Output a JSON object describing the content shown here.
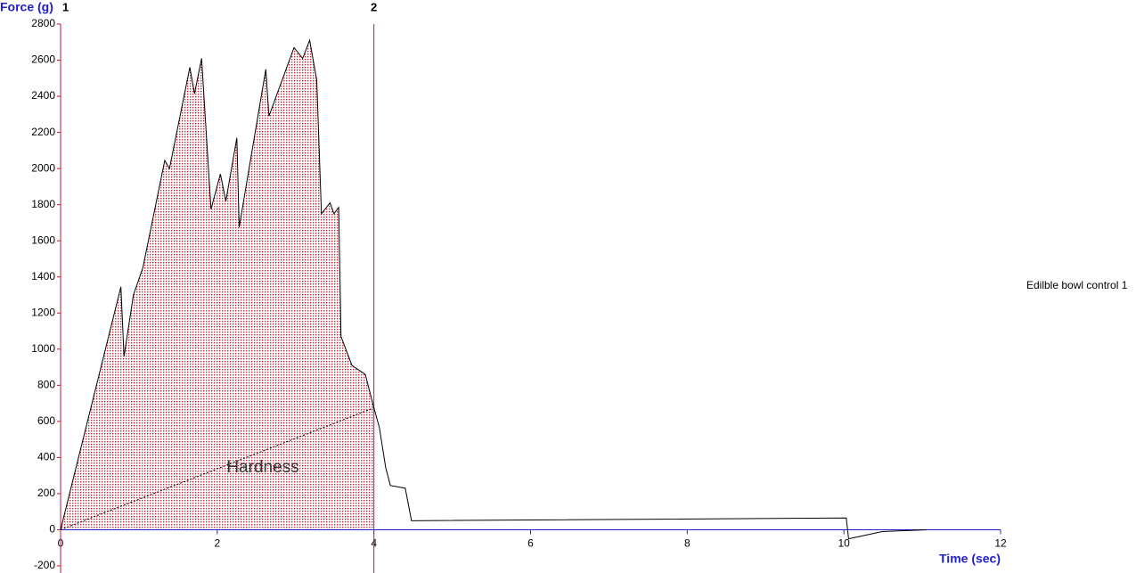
{
  "chart_data": {
    "type": "line",
    "y_label": "Force (g)",
    "x_label": "Time (sec)",
    "xlim": [
      0,
      12
    ],
    "xticks": [
      0,
      2,
      4,
      6,
      8,
      10,
      12
    ],
    "ylim": [
      -200,
      2800
    ],
    "yticks": [
      -200,
      0,
      200,
      400,
      600,
      800,
      1000,
      1200,
      1400,
      1600,
      1800,
      2000,
      2200,
      2400,
      2600,
      2800
    ],
    "markers": [
      {
        "label": "1",
        "x": 0
      },
      {
        "label": "2",
        "x": 4
      }
    ],
    "marker_color": "#d0103a",
    "annotation": "Hardness",
    "series": [
      {
        "name": "Edilble bowl control 1",
        "color": "#000000",
        "x": [
          0,
          0.77,
          0.81,
          0.93,
          1.05,
          1.33,
          1.39,
          1.65,
          1.71,
          1.8,
          1.92,
          2.04,
          2.11,
          2.25,
          2.28,
          2.62,
          2.66,
          2.98,
          3.09,
          3.18,
          3.27,
          3.33,
          3.44,
          3.49,
          3.55,
          3.58,
          3.72,
          3.89,
          4.0,
          4.07,
          4.15,
          4.21,
          4.4,
          4.48,
          10.03,
          10.06,
          10.49,
          11.06
        ],
        "values": [
          0,
          1345,
          960,
          1300,
          1450,
          2045,
          2000,
          2560,
          2415,
          2610,
          1775,
          1970,
          1820,
          2170,
          1675,
          2550,
          2290,
          2670,
          2610,
          2710,
          2490,
          1750,
          1810,
          1750,
          1785,
          1070,
          910,
          860,
          675,
          565,
          345,
          245,
          230,
          50,
          65,
          -50,
          -10,
          0
        ]
      },
      {
        "color": "#000000",
        "style": "dotted",
        "x": [
          0,
          4
        ],
        "values": [
          0,
          675
        ]
      }
    ]
  }
}
